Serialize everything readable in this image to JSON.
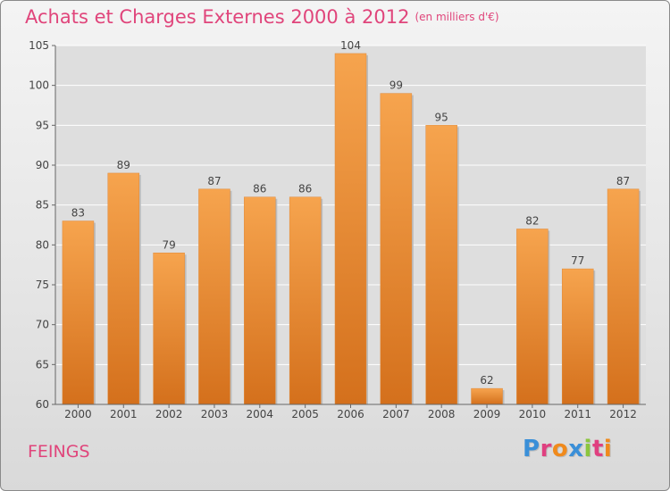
{
  "header": {
    "title": "Achats et Charges Externes 2000 à 2012",
    "unit": "(en milliers d'€)"
  },
  "footer": {
    "commune": "FEINGS",
    "logo_letters": [
      "P",
      "r",
      "o",
      "x",
      "i",
      "t",
      "i"
    ],
    "logo_colors": [
      "#3a8fd8",
      "#e04080",
      "#f08a1c",
      "#3a8fd8",
      "#8cc63e",
      "#e04080",
      "#f08a1c"
    ]
  },
  "colors": {
    "bar_top": "#f6a44e",
    "bar_bottom": "#d4701c",
    "grid": "#ffffff",
    "text": "#444444"
  },
  "chart_data": {
    "type": "bar",
    "title": "Achats et Charges Externes 2000 à 2012",
    "subtitle": "(en milliers d'€)",
    "categories": [
      "2000",
      "2001",
      "2002",
      "2003",
      "2004",
      "2005",
      "2006",
      "2007",
      "2008",
      "2009",
      "2010",
      "2011",
      "2012"
    ],
    "values": [
      83,
      89,
      79,
      87,
      86,
      86,
      104,
      99,
      95,
      62,
      82,
      77,
      87
    ],
    "ylim": [
      60,
      105
    ],
    "yticks": [
      60,
      65,
      70,
      75,
      80,
      85,
      90,
      95,
      100,
      105
    ],
    "grid": true,
    "xlabel": "",
    "ylabel": ""
  }
}
